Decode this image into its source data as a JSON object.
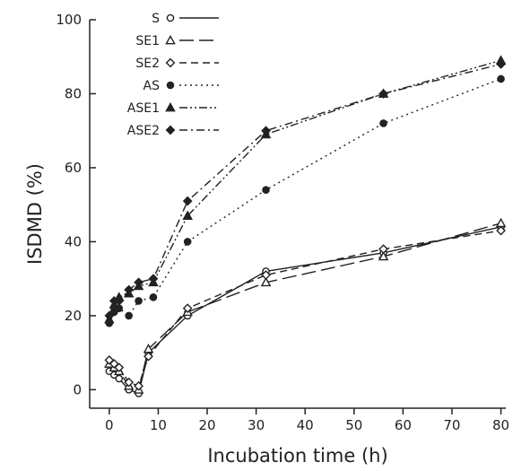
{
  "chart_data": {
    "type": "line",
    "title": "",
    "xlabel": "Incubation time (h)",
    "ylabel": "ISDMD (%)",
    "xlim": [
      -4,
      81
    ],
    "ylim": [
      -5,
      100
    ],
    "xticks": [
      0,
      10,
      20,
      30,
      40,
      50,
      60,
      70,
      80
    ],
    "yticks": [
      0,
      20,
      40,
      60,
      80,
      100
    ],
    "legend_position": "top-left",
    "grid": false,
    "series": [
      {
        "name": "S",
        "marker": "open-circle",
        "dash": "solid",
        "x": [
          0,
          1,
          2,
          4,
          6,
          8,
          16,
          32,
          56,
          80
        ],
        "y": [
          5,
          4,
          3,
          0,
          -1,
          10,
          20,
          32,
          37,
          44
        ]
      },
      {
        "name": "SE1",
        "marker": "open-triangle",
        "dash": "long-dash",
        "x": [
          0,
          1,
          2,
          4,
          6,
          8,
          16,
          32,
          56,
          80
        ],
        "y": [
          7,
          6,
          5,
          1,
          0,
          11,
          21,
          29,
          36,
          45
        ]
      },
      {
        "name": "SE2",
        "marker": "open-diamond",
        "dash": "dash",
        "x": [
          0,
          1,
          2,
          4,
          6,
          8,
          16,
          32,
          56,
          80
        ],
        "y": [
          8,
          7,
          6,
          2,
          1,
          9,
          22,
          31,
          38,
          43
        ]
      },
      {
        "name": "AS",
        "marker": "filled-circle",
        "dash": "dot",
        "x": [
          0,
          1,
          2,
          4,
          6,
          9,
          16,
          32,
          56,
          80
        ],
        "y": [
          18,
          21,
          22,
          20,
          24,
          25,
          40,
          54,
          72,
          84
        ]
      },
      {
        "name": "ASE1",
        "marker": "filled-triangle",
        "dash": "dash-dot-dot",
        "x": [
          0,
          1,
          2,
          4,
          6,
          9,
          16,
          32,
          56,
          80
        ],
        "y": [
          19,
          23,
          25,
          26,
          28,
          29,
          47,
          69,
          80,
          89
        ]
      },
      {
        "name": "ASE2",
        "marker": "filled-diamond",
        "dash": "dash-dot",
        "x": [
          0,
          1,
          2,
          4,
          6,
          9,
          16,
          32,
          56,
          80
        ],
        "y": [
          20,
          24,
          24,
          27,
          29,
          30,
          51,
          70,
          80,
          88
        ]
      }
    ]
  }
}
